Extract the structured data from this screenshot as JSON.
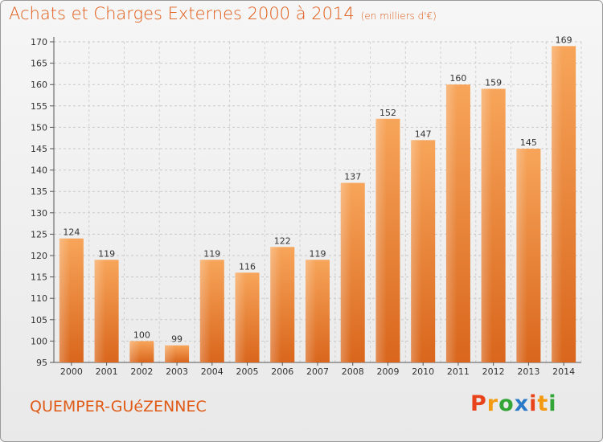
{
  "header": {
    "title": "Achats et Charges Externes 2000 à 2014",
    "unit": "(en milliers d'€)"
  },
  "footer": {
    "commune": "QUEMPER-GUéZENNEC",
    "logo_letters": [
      "P",
      "r",
      "o",
      "x",
      "i",
      "t",
      "i"
    ],
    "logo_colors": [
      "#e8431b",
      "#f39a10",
      "#34a638",
      "#2b7ac8",
      "#e8431b",
      "#f39a10",
      "#34a638"
    ]
  },
  "chart_data": {
    "type": "bar",
    "categories": [
      "2000",
      "2001",
      "2002",
      "2003",
      "2004",
      "2005",
      "2006",
      "2007",
      "2008",
      "2009",
      "2010",
      "2011",
      "2012",
      "2013",
      "2014"
    ],
    "values": [
      124,
      119,
      100,
      99,
      119,
      116,
      122,
      119,
      137,
      152,
      147,
      160,
      159,
      145,
      169
    ],
    "ylim": [
      95,
      170
    ],
    "yticks": [
      95,
      100,
      105,
      110,
      115,
      120,
      125,
      130,
      135,
      140,
      145,
      150,
      155,
      160,
      165,
      170
    ],
    "title": "Achats et Charges Externes 2000 à 2014",
    "xlabel": "",
    "ylabel": "",
    "grid": true,
    "bar_color": "#f0883a"
  }
}
